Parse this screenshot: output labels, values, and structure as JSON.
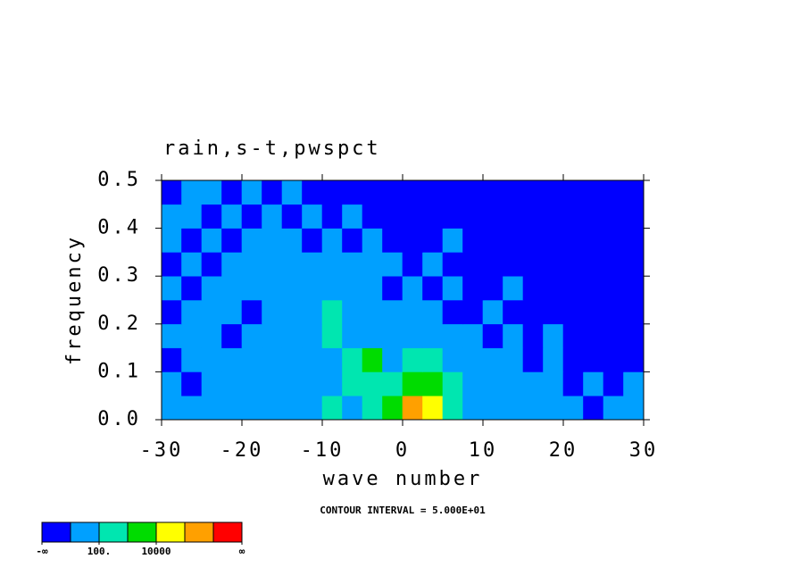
{
  "chart_data": {
    "type": "contour",
    "title": "rain,s-t,pwspct",
    "x_label": "wave number",
    "y_label": "frequency",
    "annotation": "CONTOUR INTERVAL = 5.000E+01",
    "xlim": [
      -30,
      30
    ],
    "ylim": [
      0,
      0.5
    ],
    "xticks": [
      -30,
      -20,
      -10,
      0,
      10,
      20,
      30
    ],
    "yticks": [
      {
        "value": 0,
        "label": "0.0"
      },
      {
        "value": 0.1,
        "label": "0.1"
      },
      {
        "value": 0.2,
        "label": "0.2"
      },
      {
        "value": 0.3,
        "label": "0.3"
      },
      {
        "value": 0.4,
        "label": "0.4"
      },
      {
        "value": 0.5,
        "label": "0.5"
      }
    ],
    "x": [
      -28.75,
      -26.25,
      -23.75,
      -21.25,
      -18.75,
      -16.25,
      -13.75,
      -11.25,
      -8.75,
      -6.25,
      -3.75,
      -1.25,
      1.25,
      3.75,
      6.25,
      8.75,
      11.25,
      13.75,
      16.25,
      18.75,
      21.25,
      23.75,
      26.25,
      28.75
    ],
    "y": [
      0.025,
      0.075,
      0.125,
      0.175,
      0.225,
      0.275,
      0.325,
      0.375,
      0.425,
      0.475
    ],
    "z": [
      [
        60,
        70,
        55,
        80,
        65,
        90,
        75,
        85,
        110,
        95,
        130,
        170,
        260,
        200,
        120,
        90,
        70,
        60,
        75,
        55,
        60,
        45,
        55,
        50
      ],
      [
        55,
        40,
        60,
        75,
        50,
        70,
        85,
        60,
        95,
        120,
        140,
        110,
        180,
        150,
        100,
        70,
        65,
        55,
        60,
        50,
        45,
        55,
        40,
        50
      ],
      [
        45,
        60,
        50,
        65,
        70,
        55,
        80,
        90,
        75,
        110,
        160,
        90,
        120,
        130,
        80,
        65,
        55,
        60,
        45,
        50,
        40,
        45,
        35,
        40
      ],
      [
        60,
        50,
        70,
        45,
        60,
        75,
        55,
        65,
        110,
        85,
        70,
        80,
        60,
        75,
        60,
        55,
        45,
        50,
        40,
        55,
        35,
        40,
        30,
        35
      ],
      [
        40,
        65,
        55,
        60,
        45,
        70,
        80,
        60,
        120,
        70,
        55,
        65,
        50,
        60,
        45,
        40,
        55,
        35,
        45,
        30,
        40,
        30,
        35,
        30
      ],
      [
        55,
        45,
        65,
        50,
        70,
        55,
        60,
        75,
        65,
        90,
        60,
        45,
        55,
        40,
        50,
        45,
        35,
        50,
        30,
        40,
        30,
        35,
        25,
        30
      ],
      [
        45,
        60,
        40,
        65,
        55,
        60,
        50,
        70,
        95,
        60,
        50,
        55,
        40,
        50,
        35,
        45,
        40,
        30,
        45,
        35,
        30,
        25,
        35,
        30
      ],
      [
        60,
        40,
        55,
        45,
        65,
        50,
        60,
        45,
        55,
        40,
        50,
        45,
        35,
        40,
        50,
        30,
        45,
        35,
        30,
        40,
        25,
        30,
        30,
        25
      ],
      [
        50,
        65,
        45,
        60,
        40,
        55,
        45,
        60,
        40,
        50,
        35,
        45,
        40,
        30,
        40,
        35,
        30,
        40,
        25,
        30,
        35,
        25,
        30,
        25
      ],
      [
        40,
        55,
        60,
        45,
        55,
        40,
        50,
        35,
        45,
        40,
        35,
        30,
        40,
        35,
        30,
        40,
        25,
        30,
        35,
        25,
        30,
        25,
        25,
        30
      ]
    ],
    "shade_levels": [
      50,
      100,
      150,
      200,
      250,
      300
    ],
    "colors": [
      "#0000ff",
      "#00a0ff",
      "#00e6b0",
      "#00dc00",
      "#ffff00",
      "#ffa000",
      "#ff0000"
    ],
    "colorbar_labels": [
      {
        "value": 0,
        "label": "-∞"
      },
      {
        "value": 2,
        "label": "100."
      },
      {
        "value": 4,
        "label": "10000"
      },
      {
        "value": 7,
        "label": "∞"
      }
    ]
  }
}
